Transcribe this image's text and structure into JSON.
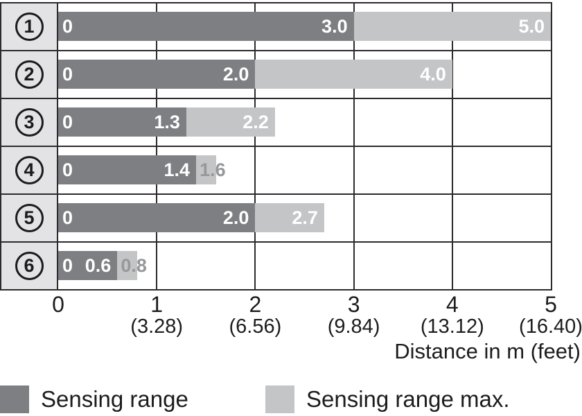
{
  "chart_data": {
    "type": "bar",
    "orientation": "horizontal",
    "xlabel": "Distance in m (feet)",
    "xlim": [
      0,
      5
    ],
    "grid": true,
    "legend_position": "bottom",
    "x_ticks": [
      {
        "m": "0",
        "feet": ""
      },
      {
        "m": "1",
        "feet": "(3.28)"
      },
      {
        "m": "2",
        "feet": "(6.56)"
      },
      {
        "m": "3",
        "feet": "(9.84)"
      },
      {
        "m": "4",
        "feet": "(13.12)"
      },
      {
        "m": "5",
        "feet": "(16.40)"
      }
    ],
    "rows": [
      {
        "id": "1",
        "zero_label": "0",
        "sensing_range": 3.0,
        "sensing_range_label": "3.0",
        "sensing_range_max": 5.0,
        "max_label": "5.0",
        "max_label_position": "inside"
      },
      {
        "id": "2",
        "zero_label": "0",
        "sensing_range": 2.0,
        "sensing_range_label": "2.0",
        "sensing_range_max": 4.0,
        "max_label": "4.0",
        "max_label_position": "inside"
      },
      {
        "id": "3",
        "zero_label": "0",
        "sensing_range": 1.3,
        "sensing_range_label": "1.3",
        "sensing_range_max": 2.2,
        "max_label": "2.2",
        "max_label_position": "inside"
      },
      {
        "id": "4",
        "zero_label": "0",
        "sensing_range": 1.4,
        "sensing_range_label": "1.4",
        "sensing_range_max": 1.6,
        "max_label": "1.6",
        "max_label_position": "outside"
      },
      {
        "id": "5",
        "zero_label": "0",
        "sensing_range": 2.0,
        "sensing_range_label": "2.0",
        "sensing_range_max": 2.7,
        "max_label": "2.7",
        "max_label_position": "inside"
      },
      {
        "id": "6",
        "zero_label": "0",
        "sensing_range": 0.6,
        "sensing_range_label": "0.6",
        "sensing_range_max": 0.8,
        "max_label": "0.8",
        "max_label_position": "outside"
      }
    ],
    "legend": [
      {
        "label": "Sensing range",
        "color": "#7e7f83"
      },
      {
        "label": "Sensing range max.",
        "color": "#c4c5c7"
      }
    ]
  },
  "colors": {
    "bar_dark": "#7e7f83",
    "bar_light": "#c4c5c7",
    "row_label_bg": "#e3e3e5",
    "grid_line": "#2b2b2e",
    "label_on_bar": "#ffffff",
    "label_outside": "#97989b",
    "axis_text": "#1c1c1c"
  }
}
